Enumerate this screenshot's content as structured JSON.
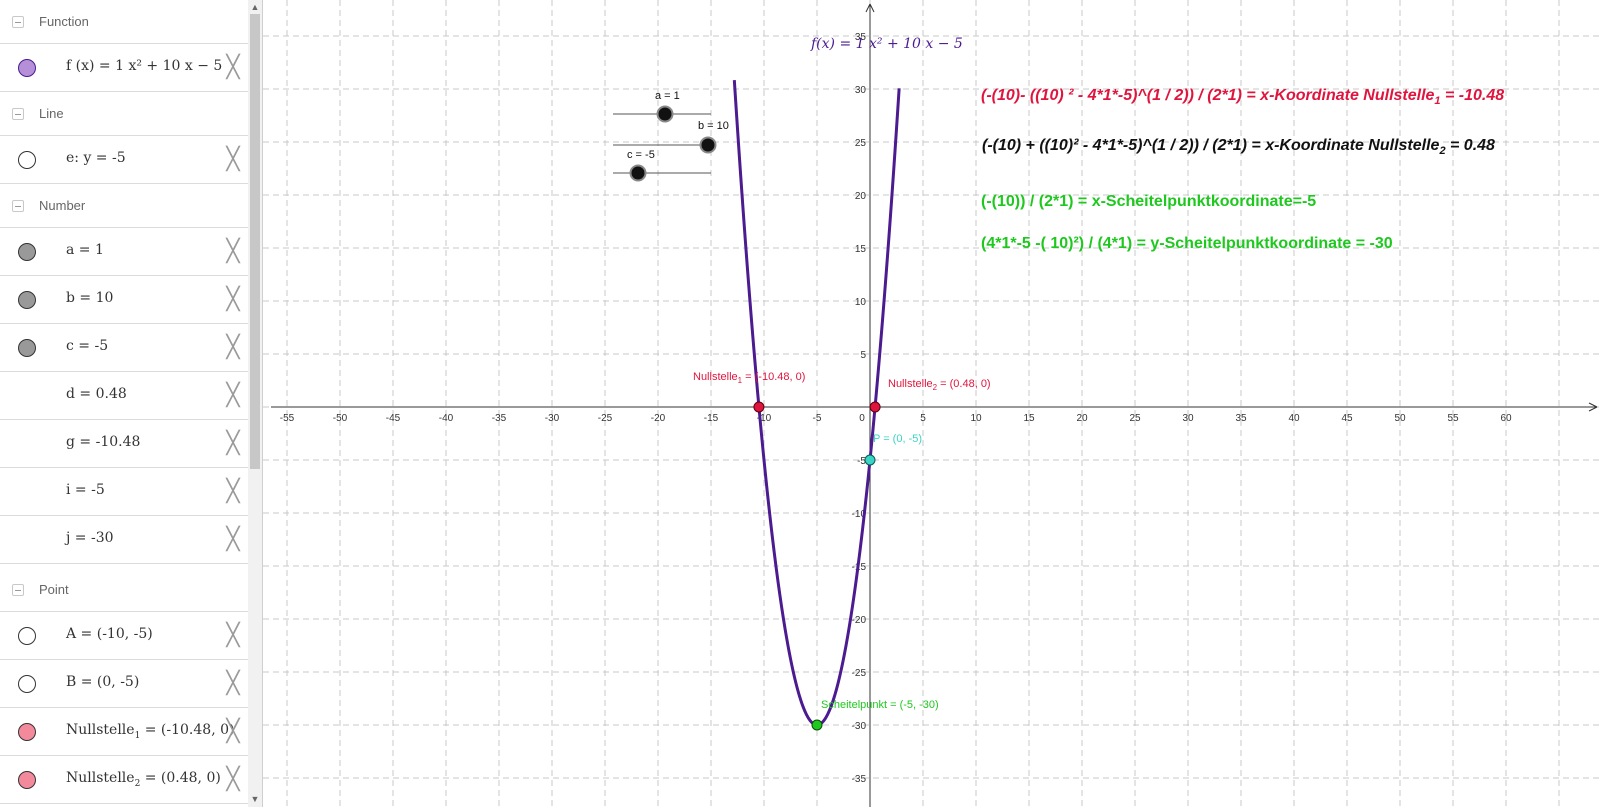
{
  "algebra": {
    "sections": {
      "function": "Function",
      "line": "Line",
      "number": "Number",
      "point": "Point"
    },
    "rows": {
      "f": "f (x)  =  1 x² + 10 x − 5",
      "e": "e: y  =  -5",
      "a": "a  =  1",
      "b": "b  =  10",
      "c": "c  =  -5",
      "d": "d  =  0.48",
      "g": "g  =  -10.48",
      "i": "i  =  -5",
      "j": "j  =  -30",
      "A": "A  =  (-10, -5)",
      "B": "B  =  (0, -5)",
      "N1_name": "Nullstelle",
      "N1_sub": "1",
      "N1_value": "  =  (-10.48, 0)",
      "N2_name": "Nullstelle",
      "N2_sub": "2",
      "N2_value": "  =  (0.48, 0)"
    },
    "delete_symbol": "╳"
  },
  "colors": {
    "function": "#4b1b8f",
    "function_marble": "#b58fd8",
    "nullstelle": "#e0153e",
    "nullstelle_marble": "#f38a9c",
    "green": "#1ec81e",
    "cyan": "#3ad4c4",
    "number_marble": "#999999"
  },
  "graph": {
    "function_label": "f(x)  =  1 x² + 10 x − 5",
    "sliders": {
      "a": "a = 1",
      "b": "b = 10",
      "c": "c = -5"
    },
    "points": {
      "nullstelle1_name": "Nullstelle",
      "nullstelle1_sub": "1",
      "nullstelle1_value": " = (-10.48, 0)",
      "nullstelle2_name": "Nullstelle",
      "nullstelle2_sub": "2",
      "nullstelle2_value": " = (0.48, 0)",
      "P": "P = (0, -5)",
      "scheitelpunkt": "Scheitelpunkt = (-5, -30)"
    },
    "formulas": {
      "f1_main": "(-(10)- ((10) ² - 4*1*-5)^(1 / 2)) / (2*1) = x-Koordinate Nullstelle",
      "f1_sub": "1",
      "f1_tail": " = -10.48",
      "f2_main": "(-(10) + ((10)² - 4*1*-5)^(1 / 2)) / (2*1) = x-Koordinate Nullstelle",
      "f2_sub": "2",
      "f2_tail": " = 0.48",
      "f3": "(-(10)) / (2*1) = x-Scheitelpunktkoordinate=-5",
      "f4": "(4*1*-5 -( 10)²) / (4*1) = y-Scheitelpunktkoordinate = -30"
    },
    "x_ticks": [
      -55,
      -50,
      -45,
      -40,
      -35,
      -30,
      -25,
      -20,
      -15,
      -10,
      -5,
      0,
      5,
      10,
      15,
      20,
      25,
      30,
      35,
      40,
      45,
      50,
      55,
      60
    ],
    "y_ticks": [
      35,
      30,
      25,
      20,
      15,
      10,
      5,
      -5,
      -10,
      -15,
      -20,
      -25,
      -30,
      -35
    ]
  }
}
